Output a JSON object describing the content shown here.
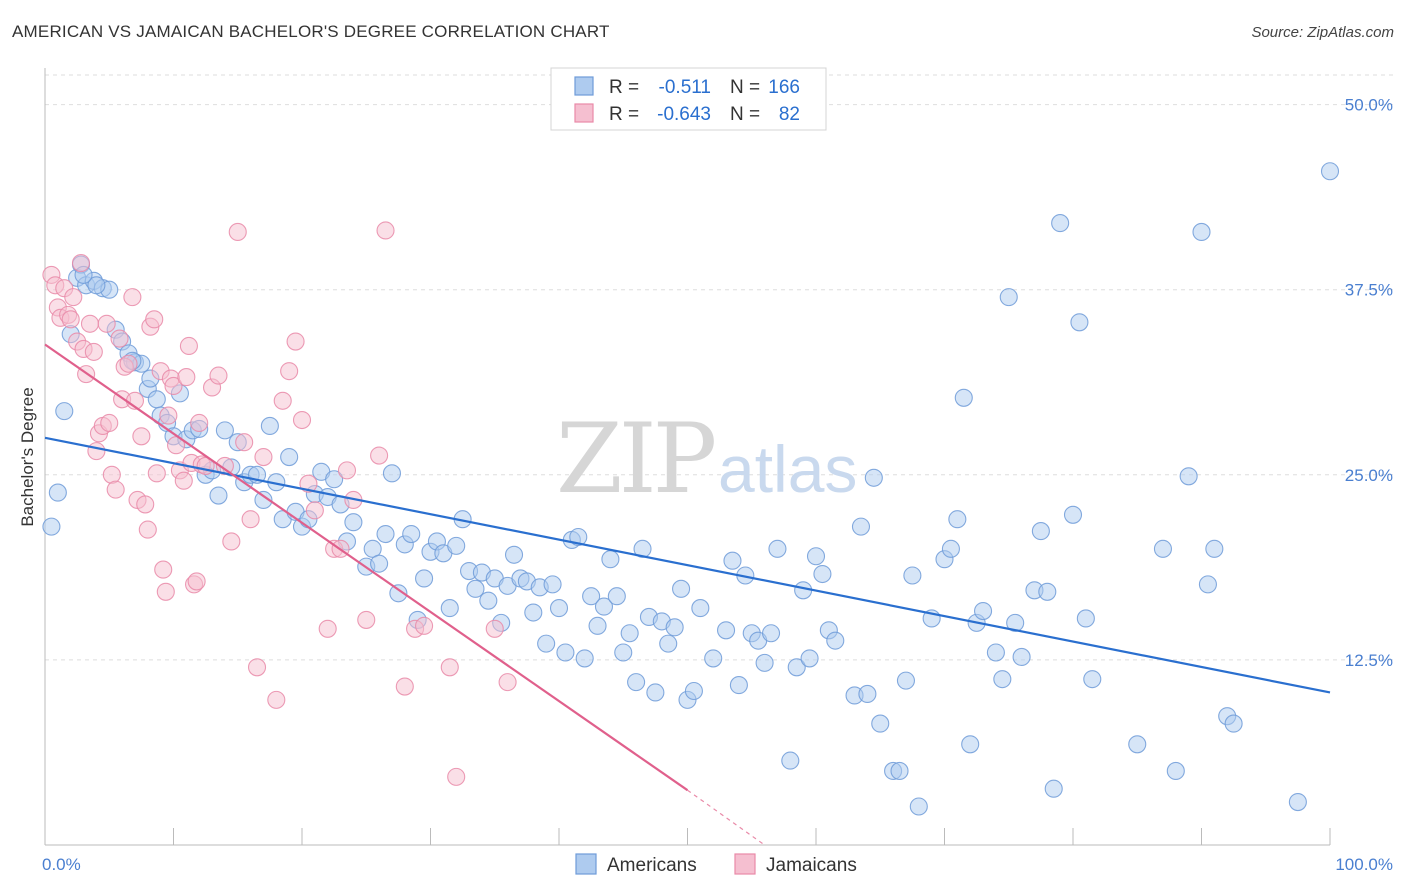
{
  "title": "AMERICAN VS JAMAICAN BACHELOR'S DEGREE CORRELATION CHART",
  "source": "Source: ZipAtlas.com",
  "watermark": {
    "zip": "ZIP",
    "atlas": "atlas"
  },
  "colors": {
    "americans_fill": "#aecbef",
    "americans_stroke": "#6f9bd8",
    "americans_line": "#2a6fcf",
    "jamaicans_fill": "#f5bfd0",
    "jamaicans_stroke": "#e98aa8",
    "jamaicans_line": "#e0608c",
    "tick_label": "#4a7fd0",
    "grid": "#dedede"
  },
  "legend": {
    "rows": [
      {
        "r_label": "R =",
        "r_value": "-0.511",
        "n_label": "N =",
        "n_value": "166"
      },
      {
        "r_label": "R =",
        "r_value": "-0.643",
        "n_label": "N =",
        "n_value": "82"
      }
    ]
  },
  "bottom_legend": [
    "Americans",
    "Jamaicans"
  ],
  "chart_data": {
    "type": "scatter",
    "title": "AMERICAN VS JAMAICAN BACHELOR'S DEGREE CORRELATION CHART",
    "xlabel": "",
    "ylabel": "Bachelor's Degree",
    "xlim": [
      0,
      100
    ],
    "ylim": [
      0,
      52
    ],
    "x_tick_labels": [
      "0.0%",
      "100.0%"
    ],
    "y_ticks": [
      12.5,
      25.0,
      37.5,
      50.0
    ],
    "y_tick_labels": [
      "12.5%",
      "25.0%",
      "37.5%",
      "50.0%"
    ],
    "series": [
      {
        "name": "Americans",
        "r": -0.511,
        "n": 166,
        "trend": {
          "x": [
            0,
            100
          ],
          "y": [
            27.5,
            10.3
          ]
        },
        "points": [
          [
            0.5,
            21.5
          ],
          [
            1,
            23.8
          ],
          [
            1.5,
            29.3
          ],
          [
            2,
            34.5
          ],
          [
            2.5,
            38.3
          ],
          [
            2.8,
            39.2
          ],
          [
            3.2,
            37.8
          ],
          [
            3.8,
            38.1
          ],
          [
            4.5,
            37.6
          ],
          [
            5,
            37.5
          ],
          [
            5.5,
            34.8
          ],
          [
            6,
            34
          ],
          [
            6.5,
            33.2
          ],
          [
            7,
            32.6
          ],
          [
            7.5,
            32.5
          ],
          [
            8,
            30.8
          ],
          [
            8.2,
            31.5
          ],
          [
            8.7,
            30.1
          ],
          [
            9,
            29
          ],
          [
            9.5,
            28.5
          ],
          [
            10,
            27.6
          ],
          [
            10.5,
            30.5
          ],
          [
            11,
            27.4
          ],
          [
            11.5,
            28
          ],
          [
            12,
            28.1
          ],
          [
            12.5,
            25
          ],
          [
            13,
            25.3
          ],
          [
            13.5,
            23.6
          ],
          [
            14,
            28
          ],
          [
            14.5,
            25.5
          ],
          [
            15,
            27.2
          ],
          [
            15.5,
            24.5
          ],
          [
            16,
            25
          ],
          [
            16.5,
            25
          ],
          [
            17,
            23.3
          ],
          [
            17.5,
            28.3
          ],
          [
            18,
            24.5
          ],
          [
            18.5,
            22
          ],
          [
            19,
            26.2
          ],
          [
            19.5,
            22.5
          ],
          [
            20,
            21.5
          ],
          [
            20.5,
            22
          ],
          [
            21,
            23.7
          ],
          [
            21.5,
            25.2
          ],
          [
            22,
            23.5
          ],
          [
            22.5,
            24.7
          ],
          [
            23,
            23
          ],
          [
            23.5,
            20.5
          ],
          [
            24,
            21.8
          ],
          [
            25,
            18.8
          ],
          [
            25.5,
            20
          ],
          [
            26,
            19
          ],
          [
            26.5,
            21
          ],
          [
            27,
            25.1
          ],
          [
            27.5,
            17
          ],
          [
            28,
            20.3
          ],
          [
            28.5,
            21
          ],
          [
            29,
            15.2
          ],
          [
            29.5,
            18
          ],
          [
            30,
            19.8
          ],
          [
            30.5,
            20.5
          ],
          [
            31,
            19.7
          ],
          [
            31.5,
            16
          ],
          [
            32,
            20.2
          ],
          [
            32.5,
            22
          ],
          [
            33,
            18.5
          ],
          [
            33.5,
            17.3
          ],
          [
            34,
            18.4
          ],
          [
            34.5,
            16.5
          ],
          [
            35,
            18
          ],
          [
            35.5,
            15
          ],
          [
            36,
            17.5
          ],
          [
            36.5,
            19.6
          ],
          [
            37,
            18
          ],
          [
            37.5,
            17.8
          ],
          [
            38,
            15.7
          ],
          [
            38.5,
            17.4
          ],
          [
            39,
            13.6
          ],
          [
            39.5,
            17.6
          ],
          [
            40,
            16
          ],
          [
            40.5,
            13
          ],
          [
            41,
            20.6
          ],
          [
            41.5,
            20.8
          ],
          [
            42,
            12.6
          ],
          [
            42.5,
            16.8
          ],
          [
            43,
            14.8
          ],
          [
            43.5,
            16.1
          ],
          [
            44,
            19.3
          ],
          [
            44.5,
            16.8
          ],
          [
            45,
            13
          ],
          [
            45.5,
            14.3
          ],
          [
            46,
            11
          ],
          [
            46.5,
            20
          ],
          [
            47,
            15.4
          ],
          [
            47.5,
            10.3
          ],
          [
            48,
            15.1
          ],
          [
            48.5,
            13.6
          ],
          [
            49,
            14.7
          ],
          [
            49.5,
            17.3
          ],
          [
            50,
            9.8
          ],
          [
            50.5,
            10.4
          ],
          [
            51,
            16
          ],
          [
            52,
            12.6
          ],
          [
            53,
            14.5
          ],
          [
            53.5,
            19.2
          ],
          [
            54,
            10.8
          ],
          [
            54.5,
            18.2
          ],
          [
            55,
            14.3
          ],
          [
            55.5,
            13.8
          ],
          [
            56,
            12.3
          ],
          [
            56.5,
            14.3
          ],
          [
            57,
            20
          ],
          [
            58,
            5.7
          ],
          [
            58.5,
            12
          ],
          [
            59,
            17.2
          ],
          [
            59.5,
            12.6
          ],
          [
            60,
            19.5
          ],
          [
            60.5,
            18.3
          ],
          [
            61,
            14.5
          ],
          [
            61.5,
            13.8
          ],
          [
            63,
            10.1
          ],
          [
            63.5,
            21.5
          ],
          [
            64,
            10.2
          ],
          [
            64.5,
            24.8
          ],
          [
            65,
            8.2
          ],
          [
            66,
            5
          ],
          [
            66.5,
            5
          ],
          [
            67,
            11.1
          ],
          [
            67.5,
            18.2
          ],
          [
            68,
            2.6
          ],
          [
            69,
            15.3
          ],
          [
            70,
            19.3
          ],
          [
            70.5,
            20
          ],
          [
            71,
            22
          ],
          [
            71.5,
            30.2
          ],
          [
            72,
            6.8
          ],
          [
            72.5,
            15
          ],
          [
            73,
            15.8
          ],
          [
            74,
            13
          ],
          [
            74.5,
            11.2
          ],
          [
            75,
            37
          ],
          [
            75.5,
            15
          ],
          [
            76,
            12.7
          ],
          [
            77,
            17.2
          ],
          [
            77.5,
            21.2
          ],
          [
            78,
            17.1
          ],
          [
            78.5,
            3.8
          ],
          [
            79,
            42
          ],
          [
            80,
            22.3
          ],
          [
            80.5,
            35.3
          ],
          [
            81,
            15.3
          ],
          [
            81.5,
            11.2
          ],
          [
            85,
            6.8
          ],
          [
            87,
            20
          ],
          [
            88,
            5
          ],
          [
            89,
            24.9
          ],
          [
            90,
            41.4
          ],
          [
            90.5,
            17.6
          ],
          [
            91,
            20
          ],
          [
            92,
            8.7
          ],
          [
            92.5,
            8.2
          ],
          [
            97.5,
            2.9
          ],
          [
            100,
            45.5
          ],
          [
            4,
            37.8
          ],
          [
            3,
            38.5
          ],
          [
            6.8,
            32.7
          ]
        ]
      },
      {
        "name": "Jamaicans",
        "r": -0.643,
        "n": 82,
        "trend": {
          "x": [
            0,
            50
          ],
          "y": [
            33.8,
            3.7
          ]
        },
        "trend_dashed": {
          "x": [
            50,
            56
          ],
          "y": [
            3.7,
            0
          ]
        },
        "points": [
          [
            0.5,
            38.5
          ],
          [
            0.8,
            37.8
          ],
          [
            1,
            36.3
          ],
          [
            1.2,
            35.6
          ],
          [
            1.5,
            37.6
          ],
          [
            1.8,
            35.8
          ],
          [
            2,
            35.5
          ],
          [
            2.2,
            37
          ],
          [
            2.5,
            34
          ],
          [
            2.8,
            39.3
          ],
          [
            3,
            33.5
          ],
          [
            3.2,
            31.8
          ],
          [
            3.5,
            35.2
          ],
          [
            3.8,
            33.3
          ],
          [
            4,
            26.6
          ],
          [
            4.2,
            27.8
          ],
          [
            4.5,
            28.3
          ],
          [
            4.8,
            35.2
          ],
          [
            5,
            28.5
          ],
          [
            5.2,
            25
          ],
          [
            5.5,
            24
          ],
          [
            5.8,
            34.2
          ],
          [
            6,
            30.1
          ],
          [
            6.2,
            32.3
          ],
          [
            6.5,
            32.5
          ],
          [
            6.8,
            37
          ],
          [
            7,
            30
          ],
          [
            7.2,
            23.3
          ],
          [
            7.5,
            27.6
          ],
          [
            7.8,
            23
          ],
          [
            8,
            21.3
          ],
          [
            8.2,
            35
          ],
          [
            8.5,
            35.5
          ],
          [
            8.7,
            25.1
          ],
          [
            9,
            32
          ],
          [
            9.2,
            18.6
          ],
          [
            9.4,
            17.1
          ],
          [
            9.6,
            29
          ],
          [
            9.8,
            31.5
          ],
          [
            10,
            31
          ],
          [
            10.2,
            27
          ],
          [
            10.5,
            25.3
          ],
          [
            10.8,
            24.6
          ],
          [
            11,
            31.6
          ],
          [
            11.2,
            33.7
          ],
          [
            11.4,
            25.8
          ],
          [
            11.6,
            17.6
          ],
          [
            11.8,
            17.8
          ],
          [
            12,
            28.5
          ],
          [
            12.2,
            25.7
          ],
          [
            12.5,
            25.6
          ],
          [
            13,
            30.9
          ],
          [
            13.5,
            31.7
          ],
          [
            14,
            25.6
          ],
          [
            14.5,
            20.5
          ],
          [
            15,
            41.4
          ],
          [
            15.5,
            27.2
          ],
          [
            16,
            22
          ],
          [
            16.5,
            12
          ],
          [
            17,
            26.2
          ],
          [
            18,
            9.8
          ],
          [
            18.5,
            30
          ],
          [
            19,
            32
          ],
          [
            19.5,
            34
          ],
          [
            20,
            28.7
          ],
          [
            20.5,
            24.4
          ],
          [
            21,
            22.6
          ],
          [
            22,
            14.6
          ],
          [
            22.5,
            20
          ],
          [
            23,
            20
          ],
          [
            23.5,
            25.3
          ],
          [
            24,
            23.3
          ],
          [
            25,
            15.2
          ],
          [
            26,
            26.3
          ],
          [
            26.5,
            41.5
          ],
          [
            28,
            10.7
          ],
          [
            28.8,
            14.6
          ],
          [
            29.5,
            14.8
          ],
          [
            31.5,
            12
          ],
          [
            32,
            4.6
          ],
          [
            35,
            14.6
          ],
          [
            36,
            11
          ]
        ]
      }
    ]
  }
}
